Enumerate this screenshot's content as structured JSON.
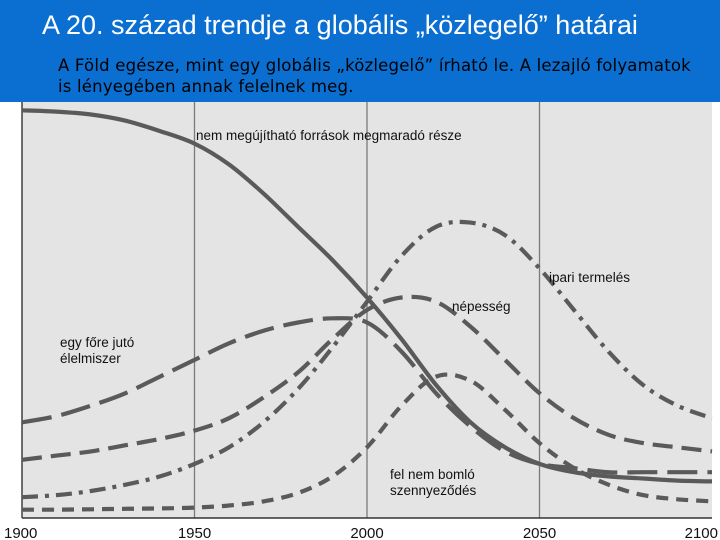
{
  "slide": {
    "title": "A 20. század trendje a globális „közlegelő” határai",
    "subtitle": "A Föld egésze, mint egy globális „közlegelő” írható le. A lezajló folyamatok is lényegében annak felelnek meg."
  },
  "colors": {
    "header": "#0b6fd1",
    "plot_bg": "#e4e4e4",
    "series": "#5a5a5a",
    "gridline": "#7a7a7a"
  },
  "chart_data": {
    "type": "line",
    "title": "",
    "xlabel": "",
    "ylabel": "",
    "xlim": [
      1900,
      2100
    ],
    "ylim": [
      0,
      1
    ],
    "x_ticks": [
      1900,
      1950,
      2000,
      2050,
      2100
    ],
    "x_tick_labels": [
      "1900",
      "1950",
      "2000",
      "2050",
      "2100"
    ],
    "vertical_gridlines": [
      1950,
      2000,
      2050
    ],
    "series": [
      {
        "name": "nem megújítható források megmaradó része",
        "style": "solid",
        "x": [
          1900,
          1910,
          1920,
          1930,
          1940,
          1950,
          1960,
          1970,
          1980,
          1990,
          2000,
          2010,
          2020,
          2030,
          2040,
          2050,
          2060,
          2070,
          2080,
          2090,
          2100
        ],
        "y": [
          0.98,
          0.977,
          0.97,
          0.955,
          0.93,
          0.9,
          0.85,
          0.78,
          0.7,
          0.62,
          0.53,
          0.43,
          0.32,
          0.23,
          0.17,
          0.13,
          0.11,
          0.1,
          0.095,
          0.09,
          0.088
        ]
      },
      {
        "name": "ipari termelés",
        "style": "dash-dot",
        "x": [
          1900,
          1910,
          1920,
          1930,
          1940,
          1950,
          1960,
          1970,
          1980,
          1990,
          2000,
          2010,
          2020,
          2030,
          2040,
          2050,
          2060,
          2070,
          2080,
          2090,
          2100
        ],
        "y": [
          0.05,
          0.055,
          0.065,
          0.08,
          0.1,
          0.13,
          0.17,
          0.23,
          0.31,
          0.41,
          0.52,
          0.63,
          0.7,
          0.71,
          0.68,
          0.6,
          0.5,
          0.4,
          0.32,
          0.27,
          0.24
        ]
      },
      {
        "name": "népesség",
        "style": "dashed",
        "x": [
          1900,
          1910,
          1920,
          1930,
          1940,
          1950,
          1960,
          1970,
          1980,
          1990,
          2000,
          2010,
          2020,
          2030,
          2040,
          2050,
          2060,
          2070,
          2080,
          2090,
          2100
        ],
        "y": [
          0.14,
          0.15,
          0.16,
          0.175,
          0.19,
          0.21,
          0.24,
          0.29,
          0.35,
          0.43,
          0.5,
          0.53,
          0.52,
          0.46,
          0.38,
          0.3,
          0.24,
          0.2,
          0.18,
          0.17,
          0.16
        ]
      },
      {
        "name": "egy főre jutó élelmiszer",
        "style": "long-dash",
        "x": [
          1900,
          1910,
          1920,
          1930,
          1940,
          1950,
          1960,
          1970,
          1980,
          1990,
          2000,
          2010,
          2020,
          2030,
          2040,
          2050,
          2060,
          2070,
          2080,
          2090,
          2100
        ],
        "y": [
          0.23,
          0.245,
          0.27,
          0.3,
          0.34,
          0.38,
          0.42,
          0.45,
          0.47,
          0.48,
          0.47,
          0.4,
          0.3,
          0.22,
          0.16,
          0.13,
          0.12,
          0.11,
          0.11,
          0.11,
          0.11
        ]
      },
      {
        "name": "fel nem bomló szennyeződés",
        "style": "dashed-short",
        "x": [
          1900,
          1910,
          1920,
          1930,
          1940,
          1950,
          1960,
          1970,
          1980,
          1990,
          2000,
          2010,
          2020,
          2030,
          2040,
          2050,
          2060,
          2070,
          2080,
          2090,
          2100
        ],
        "y": [
          0.02,
          0.02,
          0.021,
          0.022,
          0.023,
          0.025,
          0.03,
          0.04,
          0.06,
          0.1,
          0.17,
          0.27,
          0.34,
          0.33,
          0.26,
          0.18,
          0.12,
          0.08,
          0.055,
          0.045,
          0.04
        ]
      }
    ],
    "annotations": [
      {
        "id": "resources",
        "lines": [
          "nem megújítható források megmaradó része"
        ],
        "x": 1910,
        "y": 0.98
      },
      {
        "id": "industry",
        "lines": [
          "ipari termelés"
        ],
        "x": 2055,
        "y": 0.68
      },
      {
        "id": "population",
        "lines": [
          "népesség"
        ],
        "x": 2026,
        "y": 0.58
      },
      {
        "id": "food",
        "lines": [
          "egy főre jutó",
          "élelmiszer"
        ],
        "x": 1902,
        "y": 0.45
      },
      {
        "id": "pollution",
        "lines": [
          "fel nem bomló",
          "szennyeződés"
        ],
        "x": 2008,
        "y": 0.1
      }
    ]
  }
}
